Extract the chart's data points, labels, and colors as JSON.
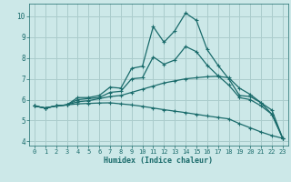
{
  "xlabel": "Humidex (Indice chaleur)",
  "bg_color": "#cce8e8",
  "grid_color": "#aacccc",
  "line_color": "#1a6b6b",
  "xlim": [
    -0.5,
    23.5
  ],
  "ylim": [
    3.8,
    10.6
  ],
  "xticks": [
    0,
    1,
    2,
    3,
    4,
    5,
    6,
    7,
    8,
    9,
    10,
    11,
    12,
    13,
    14,
    15,
    16,
    17,
    18,
    19,
    20,
    21,
    22,
    23
  ],
  "yticks": [
    4,
    5,
    6,
    7,
    8,
    9,
    10
  ],
  "curves": [
    {
      "x": [
        0,
        1,
        2,
        3,
        4,
        5,
        6,
        7,
        8,
        9,
        10,
        11,
        12,
        13,
        14,
        15,
        16,
        17,
        18,
        19,
        20,
        21,
        22,
        23
      ],
      "y": [
        5.7,
        5.6,
        5.7,
        5.75,
        6.1,
        6.1,
        6.2,
        6.6,
        6.55,
        7.5,
        7.6,
        9.5,
        8.75,
        9.3,
        10.15,
        9.8,
        8.4,
        7.65,
        7.0,
        6.2,
        6.15,
        5.85,
        5.3,
        4.15
      ]
    },
    {
      "x": [
        0,
        1,
        2,
        3,
        4,
        5,
        6,
        7,
        8,
        9,
        10,
        11,
        12,
        13,
        14,
        15,
        16,
        17,
        18,
        19,
        20,
        21,
        22,
        23
      ],
      "y": [
        5.7,
        5.6,
        5.7,
        5.75,
        5.9,
        5.95,
        6.05,
        6.15,
        6.2,
        6.35,
        6.5,
        6.65,
        6.8,
        6.9,
        7.0,
        7.05,
        7.1,
        7.12,
        7.05,
        6.55,
        6.25,
        5.85,
        5.5,
        4.15
      ]
    },
    {
      "x": [
        0,
        1,
        2,
        3,
        4,
        5,
        6,
        7,
        8,
        9,
        10,
        11,
        12,
        13,
        14,
        15,
        16,
        17,
        18,
        19,
        20,
        21,
        22,
        23
      ],
      "y": [
        5.7,
        5.6,
        5.7,
        5.75,
        5.8,
        5.82,
        5.84,
        5.85,
        5.8,
        5.75,
        5.68,
        5.6,
        5.52,
        5.45,
        5.38,
        5.3,
        5.22,
        5.15,
        5.08,
        4.85,
        4.65,
        4.45,
        4.28,
        4.15
      ]
    },
    {
      "x": [
        0,
        1,
        2,
        3,
        4,
        5,
        6,
        7,
        8,
        9,
        10,
        11,
        12,
        13,
        14,
        15,
        16,
        17,
        18,
        19,
        20,
        21,
        22,
        23
      ],
      "y": [
        5.7,
        5.6,
        5.7,
        5.75,
        6.0,
        6.05,
        6.1,
        6.35,
        6.4,
        7.0,
        7.05,
        8.05,
        7.7,
        7.9,
        8.55,
        8.3,
        7.65,
        7.15,
        6.7,
        6.1,
        6.0,
        5.7,
        5.3,
        4.15
      ]
    }
  ]
}
